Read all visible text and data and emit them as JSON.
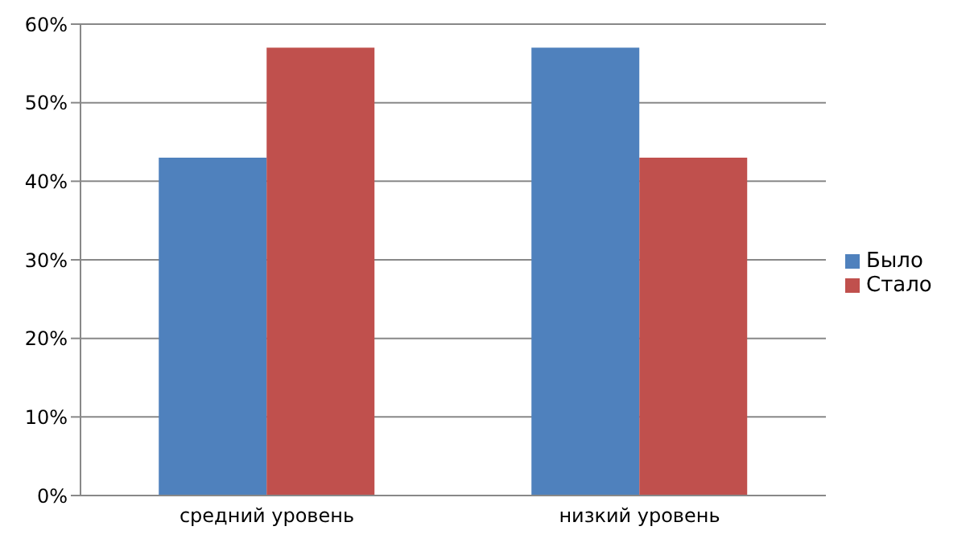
{
  "chart_data": {
    "type": "bar",
    "categories": [
      "средний уровень",
      "низкий уровень"
    ],
    "series": [
      {
        "name": "Было",
        "color": "#4f81bd",
        "values": [
          43,
          57
        ]
      },
      {
        "name": "Стало",
        "color": "#c0504d",
        "values": [
          57,
          43
        ]
      }
    ],
    "ylim": [
      0,
      60
    ],
    "yticks": [
      {
        "value": 0,
        "label": "0%"
      },
      {
        "value": 10,
        "label": "10%"
      },
      {
        "value": 20,
        "label": "20%"
      },
      {
        "value": 30,
        "label": "30%"
      },
      {
        "value": 40,
        "label": "40%"
      },
      {
        "value": 50,
        "label": "50%"
      },
      {
        "value": 60,
        "label": "60%"
      }
    ],
    "grid": "y",
    "legend": "right"
  }
}
